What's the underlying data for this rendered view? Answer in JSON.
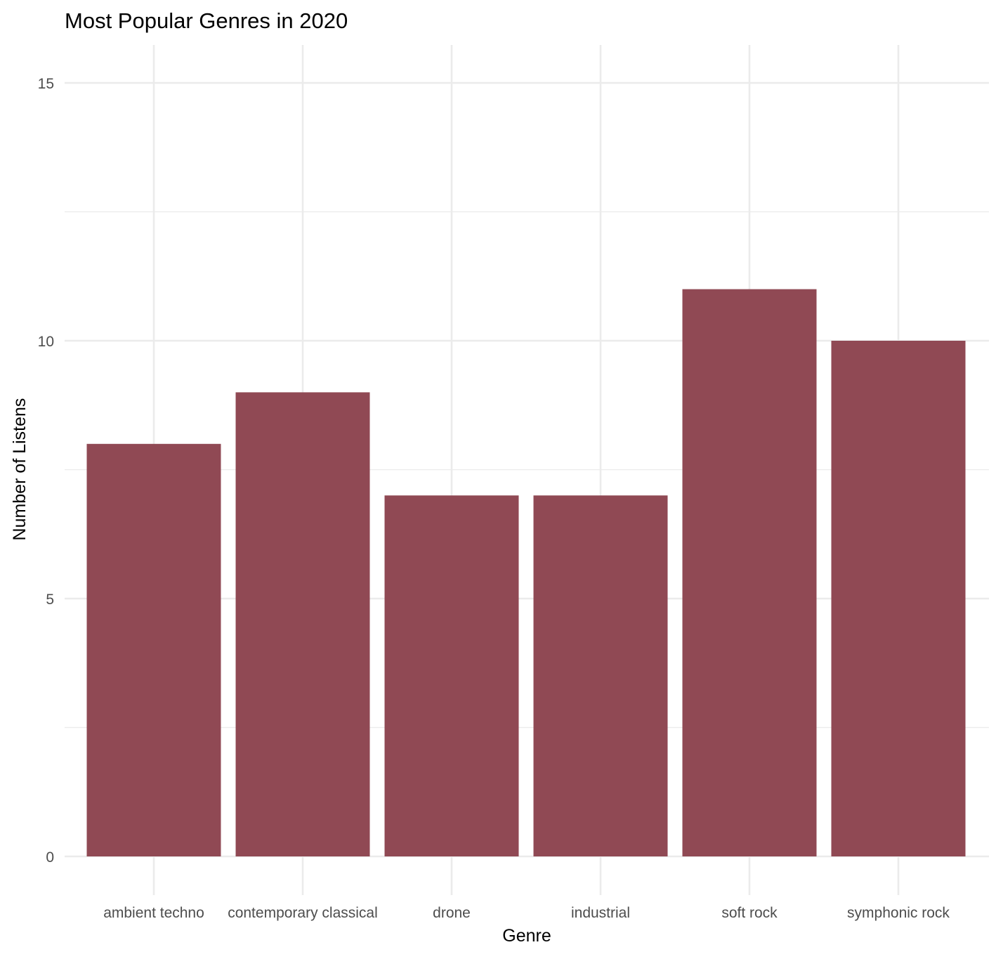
{
  "chart_data": {
    "type": "bar",
    "title": "Most Popular Genres in 2020",
    "xlabel": "Genre",
    "ylabel": "Number of Listens",
    "categories": [
      "ambient techno",
      "contemporary classical",
      "drone",
      "industrial",
      "soft rock",
      "symphonic rock"
    ],
    "values": [
      8,
      9,
      7,
      7,
      11,
      10
    ],
    "ylim": [
      -0.6,
      15.75
    ],
    "yticks": [
      "0",
      "5",
      "10",
      "15"
    ],
    "grid": true,
    "legend": "none",
    "colors": {
      "bar": "#904954",
      "grid": "#ebebeb",
      "tick_text": "#4d4d4d",
      "text": "#000000"
    }
  }
}
